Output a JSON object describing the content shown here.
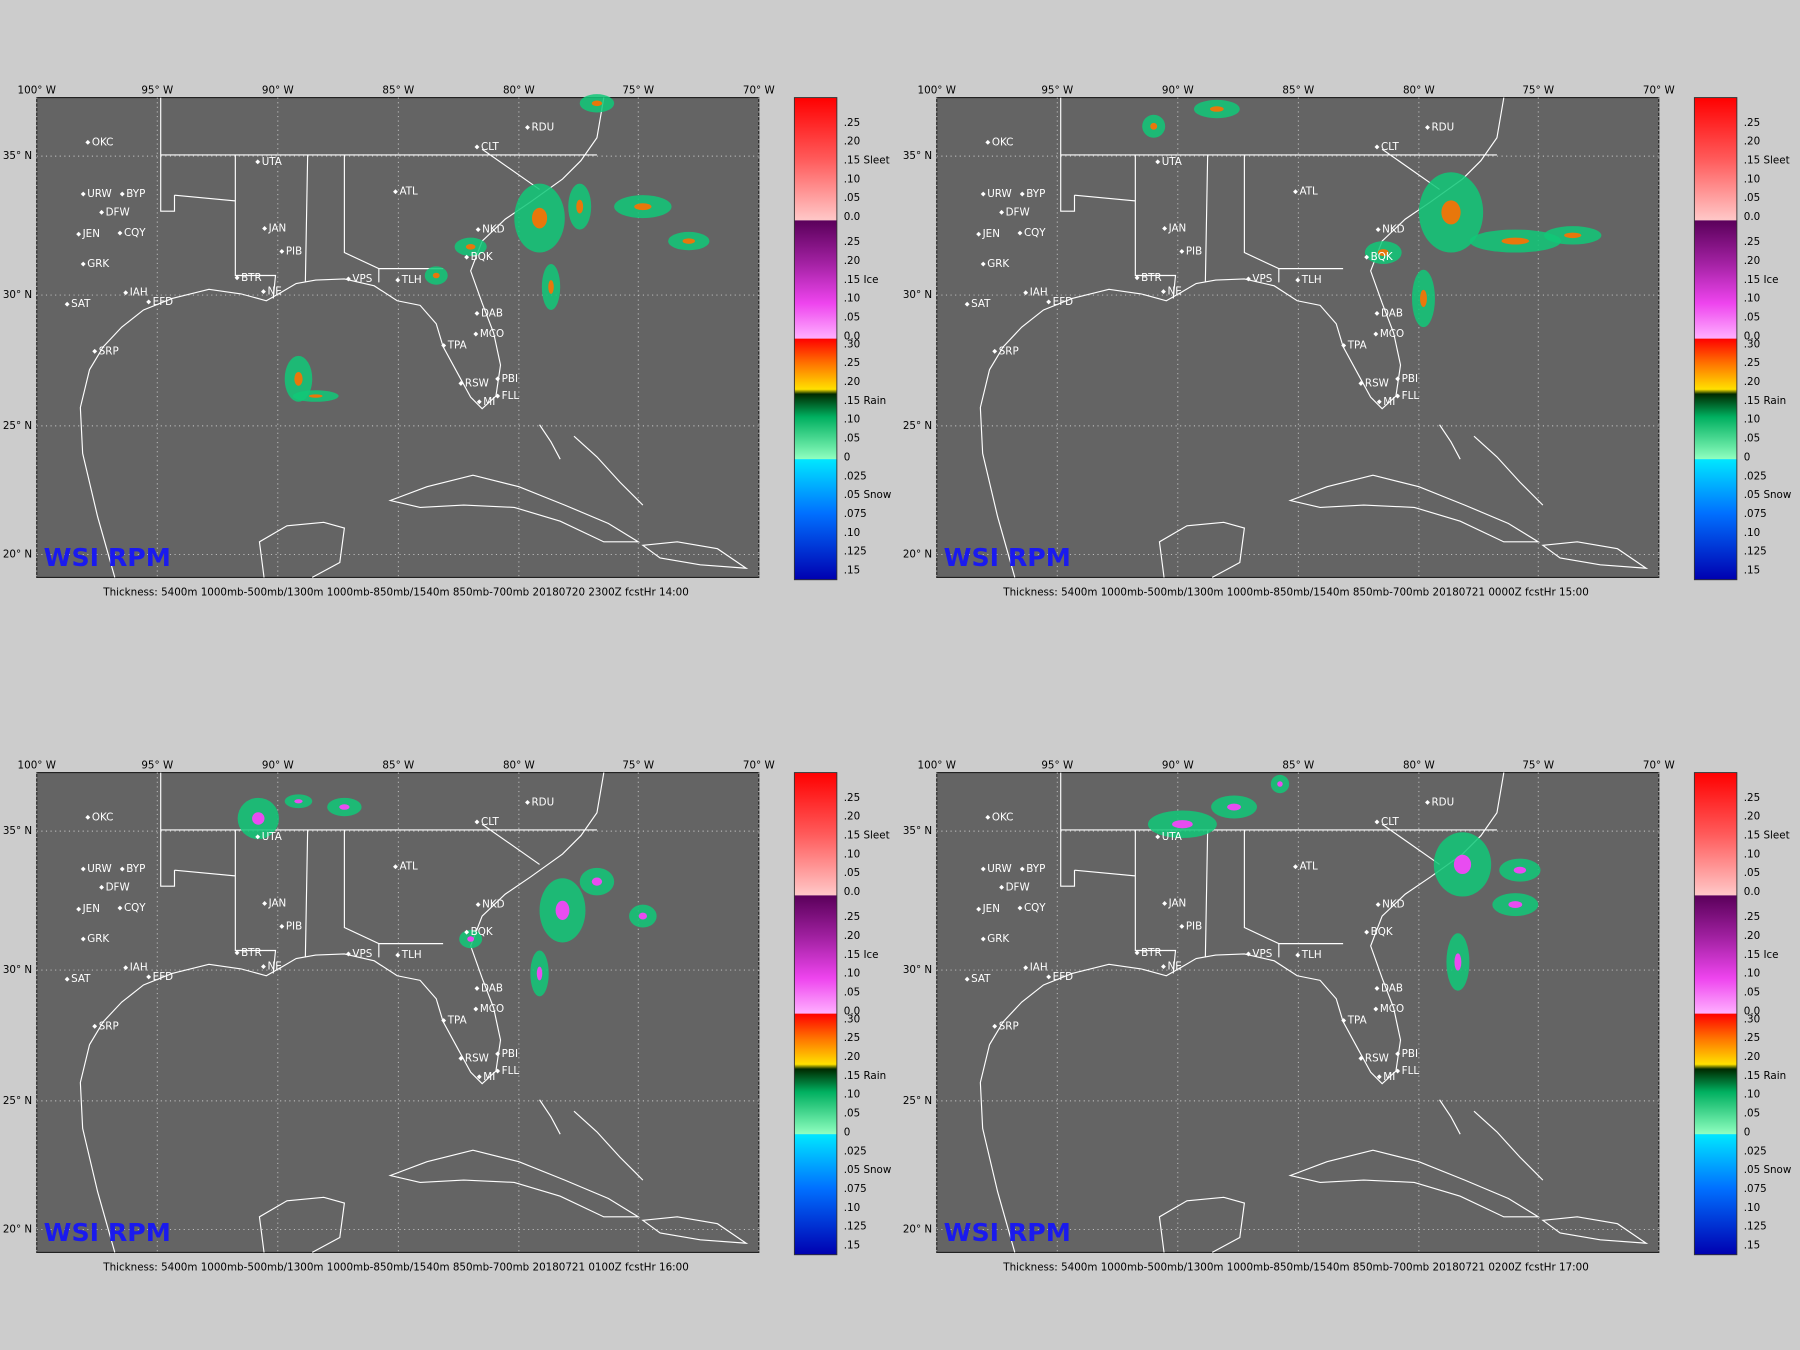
{
  "map": {
    "lon_labels": [
      "100° W",
      "95° W",
      "90° W",
      "85° W",
      "80° W",
      "75° W",
      "70° W"
    ],
    "lat_labels": [
      "35° N",
      "30° N",
      "25° N",
      "20° N"
    ],
    "cities": [
      "OKC",
      "UTA",
      "URW",
      "BYP",
      "DFW",
      "JEN",
      "CQY",
      "GRK",
      "SAT",
      "IAH",
      "EFD",
      "BTR",
      "NE",
      "JAN",
      "PIB",
      "VPS",
      "TLH",
      "ATL",
      "CLT",
      "RDU",
      "NKD",
      "BQK",
      "DAB",
      "MCO",
      "TPA",
      "RSW",
      "PBI",
      "FLL",
      "MI",
      "SRP"
    ],
    "logo": "WSI RPM",
    "legend": [
      {
        "labels": [
          ".25",
          ".20",
          ".15 Sleet",
          ".10",
          ".05",
          "0.0"
        ]
      },
      {
        "labels": [
          ".25",
          ".20",
          ".15 Ice",
          ".10",
          ".05",
          "0.0"
        ]
      },
      {
        "labels": [
          ".30",
          ".25",
          ".20",
          ".15 Rain",
          ".10",
          ".05",
          "0"
        ]
      },
      {
        "labels": [
          ".025",
          ".05 Snow",
          ".075",
          ".10",
          ".125",
          ".15"
        ]
      }
    ]
  },
  "panels": [
    {
      "caption": "Thickness: 5400m 1000mb-500mb/1300m 1000mb-850mb/1540m 850mb-700mb 20180720 2300Z fcstHr 14:00"
    },
    {
      "caption": "Thickness: 5400m 1000mb-500mb/1300m 1000mb-850mb/1540m 850mb-700mb 20180721 0000Z fcstHr 15:00"
    },
    {
      "caption": "Thickness: 5400m 1000mb-500mb/1300m 1000mb-850mb/1540m 850mb-700mb 20180721 0100Z fcstHr 16:00"
    },
    {
      "caption": "Thickness: 5400m 1000mb-500mb/1300m 1000mb-850mb/1540m 850mb-700mb 20180721 0200Z fcstHr 17:00"
    }
  ]
}
